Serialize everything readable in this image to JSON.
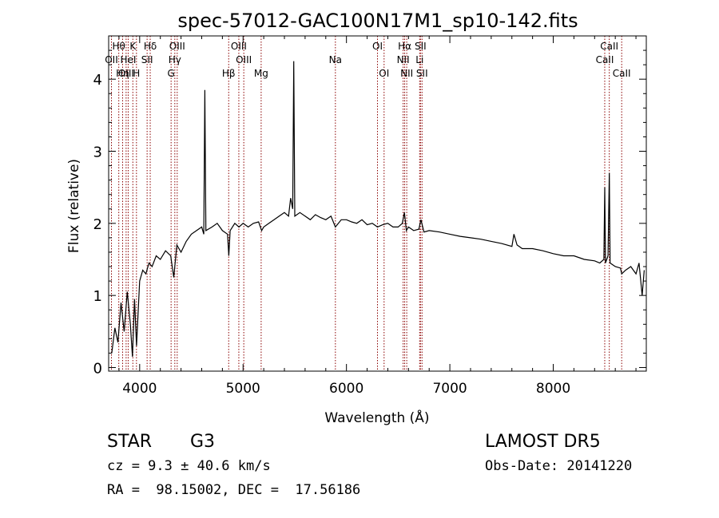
{
  "chart_data": {
    "type": "line",
    "title": "spec-57012-GAC100N17M1_sp10-142.fits",
    "xlabel": "Wavelength (Å)",
    "ylabel": "Flux (relative)",
    "xlim": [
      3700,
      8900
    ],
    "ylim": [
      -0.05,
      4.6
    ],
    "x_ticks": [
      4000,
      5000,
      6000,
      7000,
      8000
    ],
    "y_ticks": [
      0,
      1,
      2,
      3,
      4
    ],
    "grid": false,
    "series": [
      {
        "points": [
          [
            3730,
            0.2
          ],
          [
            3760,
            0.55
          ],
          [
            3790,
            0.35
          ],
          [
            3820,
            0.9
          ],
          [
            3850,
            0.5
          ],
          [
            3880,
            1.05
          ],
          [
            3910,
            0.6
          ],
          [
            3930,
            0.15
          ],
          [
            3950,
            0.95
          ],
          [
            3970,
            0.3
          ],
          [
            4000,
            1.2
          ],
          [
            4030,
            1.35
          ],
          [
            4060,
            1.3
          ],
          [
            4090,
            1.45
          ],
          [
            4120,
            1.4
          ],
          [
            4160,
            1.55
          ],
          [
            4200,
            1.5
          ],
          [
            4250,
            1.62
          ],
          [
            4300,
            1.55
          ],
          [
            4330,
            1.25
          ],
          [
            4360,
            1.7
          ],
          [
            4400,
            1.6
          ],
          [
            4450,
            1.75
          ],
          [
            4500,
            1.85
          ],
          [
            4550,
            1.9
          ],
          [
            4600,
            1.95
          ],
          [
            4620,
            1.85
          ],
          [
            4630,
            3.85
          ],
          [
            4640,
            1.9
          ],
          [
            4700,
            1.95
          ],
          [
            4750,
            2.0
          ],
          [
            4800,
            1.9
          ],
          [
            4850,
            1.85
          ],
          [
            4862,
            1.55
          ],
          [
            4875,
            1.9
          ],
          [
            4920,
            2.0
          ],
          [
            4960,
            1.95
          ],
          [
            5000,
            2.0
          ],
          [
            5050,
            1.95
          ],
          [
            5100,
            2.0
          ],
          [
            5150,
            2.02
          ],
          [
            5180,
            1.9
          ],
          [
            5200,
            1.95
          ],
          [
            5250,
            2.0
          ],
          [
            5300,
            2.05
          ],
          [
            5350,
            2.1
          ],
          [
            5400,
            2.15
          ],
          [
            5440,
            2.1
          ],
          [
            5460,
            2.35
          ],
          [
            5480,
            2.2
          ],
          [
            5490,
            4.25
          ],
          [
            5500,
            2.1
          ],
          [
            5550,
            2.15
          ],
          [
            5600,
            2.1
          ],
          [
            5650,
            2.05
          ],
          [
            5700,
            2.12
          ],
          [
            5750,
            2.08
          ],
          [
            5800,
            2.05
          ],
          [
            5850,
            2.1
          ],
          [
            5893,
            1.95
          ],
          [
            5950,
            2.05
          ],
          [
            6000,
            2.05
          ],
          [
            6050,
            2.02
          ],
          [
            6100,
            2.0
          ],
          [
            6150,
            2.05
          ],
          [
            6200,
            1.98
          ],
          [
            6250,
            2.0
          ],
          [
            6300,
            1.95
          ],
          [
            6350,
            1.98
          ],
          [
            6400,
            2.0
          ],
          [
            6450,
            1.95
          ],
          [
            6500,
            1.95
          ],
          [
            6540,
            2.0
          ],
          [
            6560,
            2.15
          ],
          [
            6580,
            1.9
          ],
          [
            6600,
            1.95
          ],
          [
            6650,
            1.9
          ],
          [
            6700,
            1.92
          ],
          [
            6720,
            2.05
          ],
          [
            6750,
            1.88
          ],
          [
            6800,
            1.9
          ],
          [
            6900,
            1.88
          ],
          [
            7000,
            1.85
          ],
          [
            7100,
            1.82
          ],
          [
            7200,
            1.8
          ],
          [
            7300,
            1.78
          ],
          [
            7400,
            1.75
          ],
          [
            7500,
            1.72
          ],
          [
            7600,
            1.68
          ],
          [
            7620,
            1.85
          ],
          [
            7650,
            1.7
          ],
          [
            7700,
            1.65
          ],
          [
            7800,
            1.65
          ],
          [
            7900,
            1.62
          ],
          [
            8000,
            1.58
          ],
          [
            8100,
            1.55
          ],
          [
            8200,
            1.55
          ],
          [
            8300,
            1.5
          ],
          [
            8400,
            1.48
          ],
          [
            8450,
            1.45
          ],
          [
            8490,
            1.5
          ],
          [
            8498,
            2.5
          ],
          [
            8505,
            1.45
          ],
          [
            8530,
            1.55
          ],
          [
            8542,
            2.7
          ],
          [
            8550,
            1.45
          ],
          [
            8600,
            1.4
          ],
          [
            8650,
            1.38
          ],
          [
            8662,
            1.3
          ],
          [
            8700,
            1.35
          ],
          [
            8750,
            1.4
          ],
          [
            8800,
            1.3
          ],
          [
            8830,
            1.45
          ],
          [
            8860,
            1.0
          ],
          [
            8880,
            1.35
          ]
        ]
      }
    ],
    "line_markers": [
      {
        "label": "Hθ",
        "x": 3798,
        "row": 0
      },
      {
        "label": "OII",
        "x": 3727,
        "row": 1
      },
      {
        "label": "OIII",
        "x": 3869,
        "row": 2
      },
      {
        "label": "K",
        "x": 3934,
        "row": 0
      },
      {
        "label": "HeI",
        "x": 3889,
        "row": 1
      },
      {
        "label": "Hη",
        "x": 3835,
        "row": 2
      },
      {
        "label": "H",
        "x": 3969,
        "row": 2
      },
      {
        "label": "Hδ",
        "x": 4102,
        "row": 0
      },
      {
        "label": "SII",
        "x": 4072,
        "row": 1
      },
      {
        "label": "OIII",
        "x": 4363,
        "row": 0
      },
      {
        "label": "Hγ",
        "x": 4340,
        "row": 1
      },
      {
        "label": "G",
        "x": 4304,
        "row": 2
      },
      {
        "label": "Hβ",
        "x": 4861,
        "row": 2
      },
      {
        "label": "OIII",
        "x": 4959,
        "row": 0
      },
      {
        "label": "OIII",
        "x": 5007,
        "row": 1
      },
      {
        "label": "Mg",
        "x": 5175,
        "row": 2
      },
      {
        "label": "Na",
        "x": 5893,
        "row": 1
      },
      {
        "label": "OI",
        "x": 6300,
        "row": 0
      },
      {
        "label": "OI",
        "x": 6364,
        "row": 2
      },
      {
        "label": "Hα",
        "x": 6563,
        "row": 0
      },
      {
        "label": "NII",
        "x": 6548,
        "row": 1
      },
      {
        "label": "NII",
        "x": 6583,
        "row": 2
      },
      {
        "label": "SII",
        "x": 6716,
        "row": 0
      },
      {
        "label": "Li",
        "x": 6708,
        "row": 1
      },
      {
        "label": "SII",
        "x": 6731,
        "row": 2
      },
      {
        "label": "CaII",
        "x": 8542,
        "row": 0
      },
      {
        "label": "CaII",
        "x": 8498,
        "row": 1
      },
      {
        "label": "CaII",
        "x": 8662,
        "row": 2
      }
    ],
    "marker_color": "#8b0000",
    "line_color": "#000000"
  },
  "info": {
    "object_class": "STAR",
    "subclass": "G3",
    "survey": "LAMOST DR5",
    "redshift_line": "cz = 9.3 ± 40.6 km/s",
    "obs_date": "Obs-Date: 20141220",
    "coords": "RA =  98.15002, DEC =  17.56186"
  }
}
